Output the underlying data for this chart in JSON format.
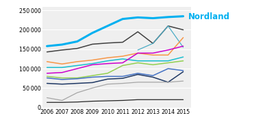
{
  "years": [
    2006,
    2007,
    2008,
    2009,
    2010,
    2011,
    2012,
    2013,
    2014,
    2015
  ],
  "series": [
    {
      "name": "Nordland",
      "color": "#00b0f0",
      "linewidth": 2.2,
      "values": [
        158000,
        162000,
        170000,
        192000,
        210000,
        228000,
        232000,
        230000,
        233000,
        235000
      ]
    },
    {
      "name": "line_dark_top",
      "color": "#404040",
      "linewidth": 1.1,
      "values": [
        143000,
        148000,
        152000,
        163000,
        166000,
        168000,
        195000,
        165000,
        210000,
        200000
      ]
    },
    {
      "name": "line_cyan_dotted",
      "color": "#4bacc6",
      "linewidth": 0.9,
      "values": [
        null,
        null,
        null,
        null,
        null,
        null,
        148000,
        165000,
        210000,
        155000
      ]
    },
    {
      "name": "line_orange",
      "color": "#f79646",
      "linewidth": 1.1,
      "values": [
        118000,
        112000,
        118000,
        122000,
        128000,
        132000,
        140000,
        135000,
        135000,
        180000
      ]
    },
    {
      "name": "line_cyan_light",
      "color": "#17becf",
      "linewidth": 1.1,
      "values": [
        103000,
        103000,
        108000,
        113000,
        120000,
        125000,
        120000,
        120000,
        120000,
        130000
      ]
    },
    {
      "name": "line_magenta",
      "color": "#cc00cc",
      "linewidth": 1.1,
      "values": [
        88000,
        90000,
        100000,
        110000,
        113000,
        115000,
        140000,
        140000,
        148000,
        158000
      ]
    },
    {
      "name": "line_green_lime",
      "color": "#92d050",
      "linewidth": 1.1,
      "values": [
        80000,
        76000,
        76000,
        82000,
        88000,
        108000,
        115000,
        110000,
        115000,
        120000
      ]
    },
    {
      "name": "line_blue_medium",
      "color": "#4472c4",
      "linewidth": 1.1,
      "values": [
        76000,
        72000,
        74000,
        78000,
        80000,
        80000,
        88000,
        82000,
        100000,
        95000
      ]
    },
    {
      "name": "line_dark_navy",
      "color": "#1f3864",
      "linewidth": 1.1,
      "values": [
        62000,
        60000,
        62000,
        64000,
        73000,
        75000,
        85000,
        78000,
        65000,
        92000
      ]
    },
    {
      "name": "line_gray",
      "color": "#a6a6a6",
      "linewidth": 0.9,
      "values": [
        25000,
        18000,
        38000,
        50000,
        60000,
        62000,
        65000,
        65000,
        65000,
        68000
      ]
    },
    {
      "name": "line_black_thin",
      "color": "#262626",
      "linewidth": 0.9,
      "values": [
        13000,
        13000,
        14000,
        16000,
        17000,
        18000,
        20000,
        20000,
        20000,
        20000
      ]
    }
  ],
  "nordland_label": "Nordland",
  "nordland_label_color": "#00b0f0",
  "ylim": [
    0,
    260000
  ],
  "yticks": [
    0,
    50000,
    100000,
    150000,
    200000,
    250000
  ],
  "xticks": [
    2006,
    2007,
    2008,
    2009,
    2010,
    2011,
    2012,
    2013,
    2014,
    2015
  ],
  "background_color": "#ffffff",
  "plot_bg_color": "#efefef",
  "grid_color": "#ffffff",
  "tick_fontsize": 5.8,
  "label_fontsize": 8.5
}
